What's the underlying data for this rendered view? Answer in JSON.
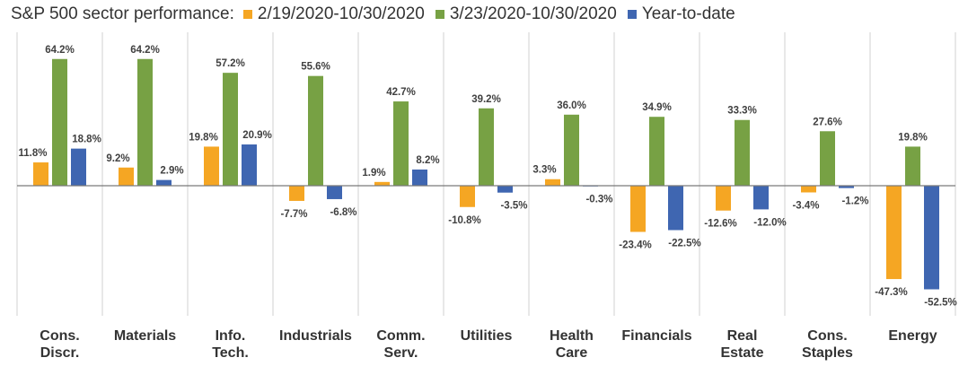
{
  "chart_data": {
    "type": "bar",
    "title": "S&P 500 sector performance:",
    "categories": [
      [
        "Cons.",
        "Discr."
      ],
      [
        "Materials"
      ],
      [
        "Info.",
        "Tech."
      ],
      [
        "Industrials"
      ],
      [
        "Comm.",
        "Serv."
      ],
      [
        "Utilities"
      ],
      [
        "Health",
        "Care"
      ],
      [
        "Financials"
      ],
      [
        "Real",
        "Estate"
      ],
      [
        "Cons.",
        "Staples"
      ],
      [
        "Energy"
      ]
    ],
    "series": [
      {
        "name": "2/19/2020-10/30/2020",
        "color": "#F5A623",
        "values": [
          11.8,
          9.2,
          19.8,
          -7.7,
          1.9,
          -10.8,
          3.3,
          -23.4,
          -12.6,
          -3.4,
          -47.3
        ]
      },
      {
        "name": "3/23/2020-10/30/2020",
        "color": "#77A144",
        "values": [
          64.2,
          64.2,
          57.2,
          55.6,
          42.7,
          39.2,
          36.0,
          34.9,
          33.3,
          27.6,
          19.8
        ]
      },
      {
        "name": "Year-to-date",
        "color": "#3F66B1",
        "values": [
          18.8,
          2.9,
          20.9,
          -6.8,
          8.2,
          -3.5,
          -0.3,
          -22.5,
          -12.0,
          -1.2,
          -52.5
        ]
      }
    ],
    "value_suffix": "%",
    "ylim": [
      -65,
      70
    ],
    "grid": false,
    "legend_position": "top"
  }
}
